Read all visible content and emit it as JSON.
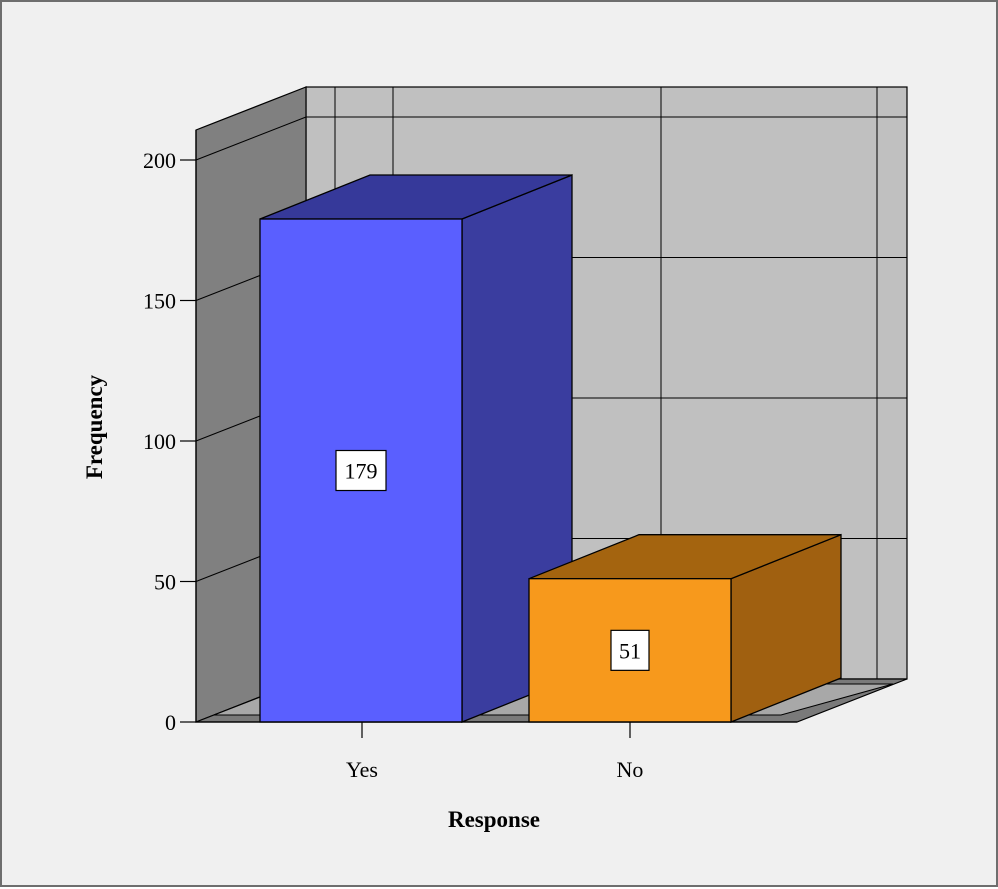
{
  "chart_data": {
    "type": "bar",
    "style": "3d",
    "categories": [
      "Yes",
      "No"
    ],
    "values": [
      179,
      51
    ],
    "data_labels": [
      "179",
      "51"
    ],
    "title": "",
    "xlabel": "Response",
    "ylabel": "Frequency",
    "ylim": [
      0,
      200
    ],
    "yticks": [
      0,
      50,
      100,
      150,
      200
    ],
    "grid": true,
    "legend": "none",
    "bar_colors": {
      "front": [
        "#5a5fff",
        "#f7991c"
      ],
      "side": [
        "#3a3d9f",
        "#a06010"
      ],
      "top": [
        "#36399a",
        "#a4640f"
      ]
    },
    "wall_colors": {
      "back": "#c0c0c0",
      "left": "#808080",
      "floor": "#7a7a7a"
    }
  }
}
